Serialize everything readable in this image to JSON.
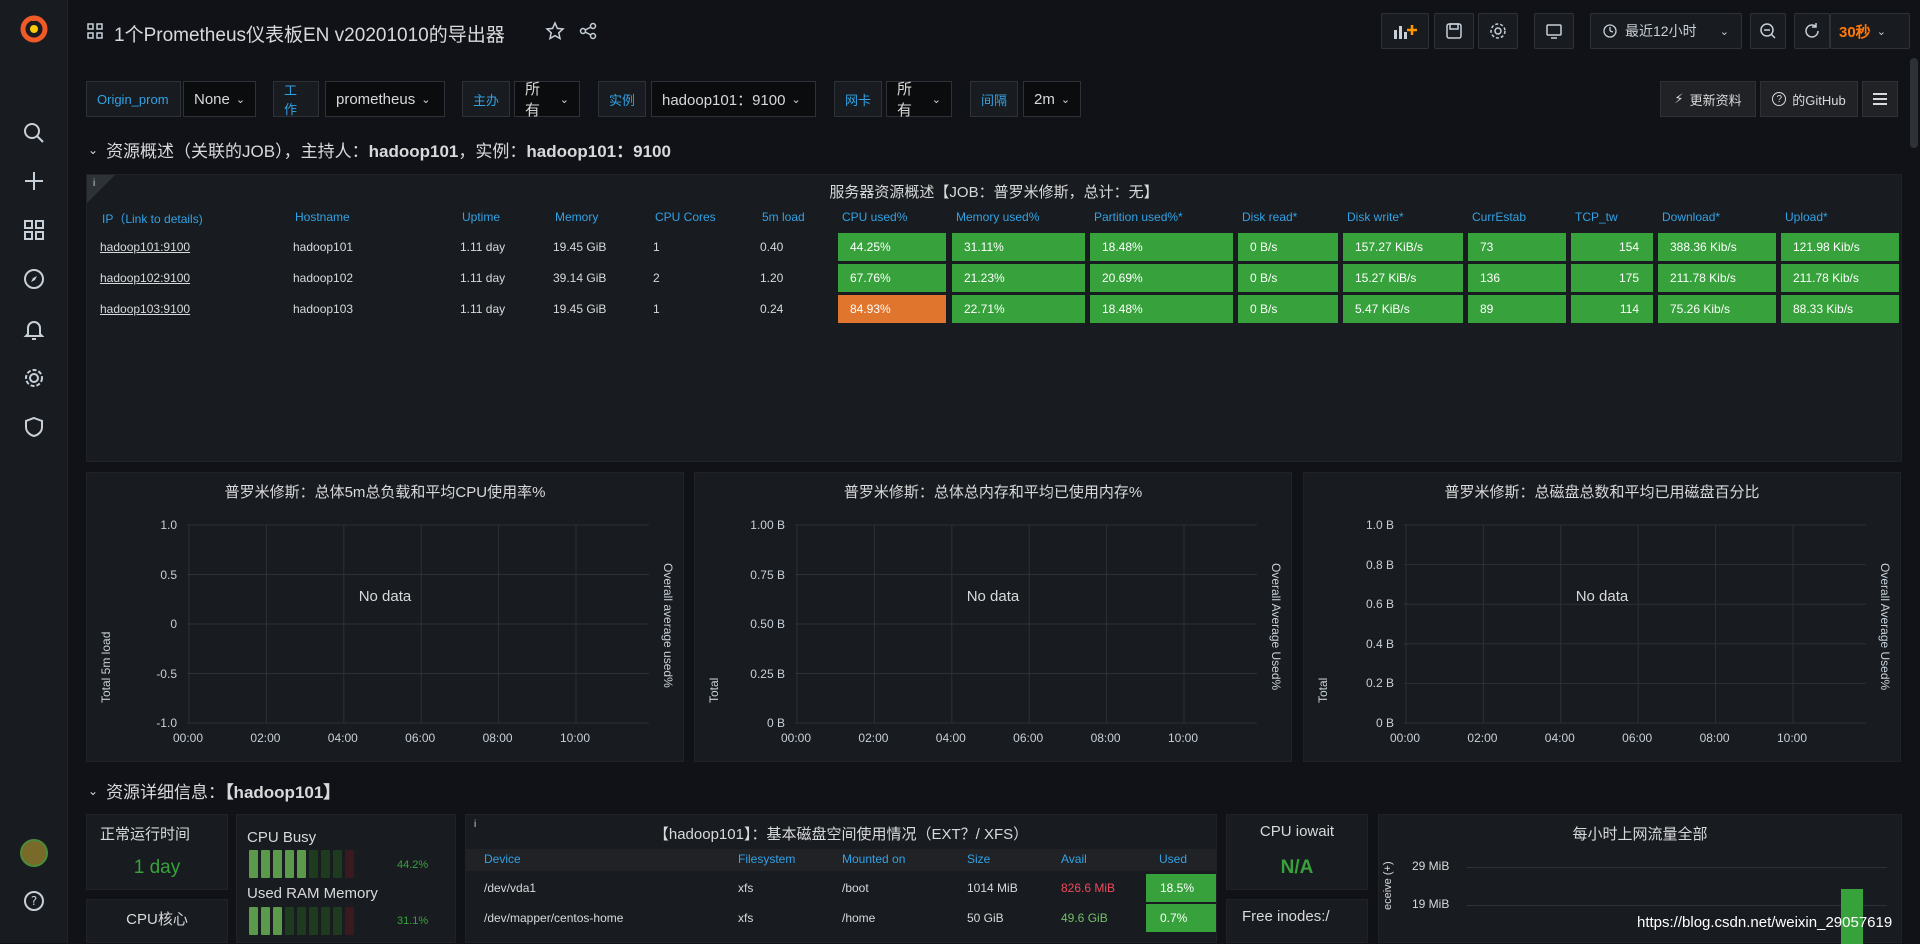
{
  "header": {
    "title": "1个Prometheus仪表板EN v20201010的导出器",
    "time_range": "最近12小时",
    "refresh": "30秒"
  },
  "variables": [
    {
      "label": "Origin_prom",
      "value": "None"
    },
    {
      "label": "工作",
      "value": "prometheus"
    },
    {
      "label": "主办",
      "value": "所有"
    },
    {
      "label": "实例",
      "value": "hadoop101：9100"
    },
    {
      "label": "网卡",
      "value": "所有"
    },
    {
      "label": "间隔",
      "value": "2m"
    }
  ],
  "links": {
    "refresh_label": "更新资料",
    "github_label": "的GitHub"
  },
  "row1": {
    "title_prefix": "资源概述（关联的JOB），主持人：",
    "host": "hadoop101",
    "instance_prefix": "，实例：",
    "instance": "hadoop101：9100"
  },
  "table_panel": {
    "title": "服务器资源概述【JOB：普罗米修斯，总计：无】",
    "headers": [
      "IP（Link to details)",
      "Hostname",
      "Uptime",
      "Memory",
      "CPU Cores",
      "5m load",
      "CPU used%",
      "Memory used%",
      "Partition used%*",
      "Disk read*",
      "Disk write*",
      "CurrEstab",
      "TCP_tw",
      "Download*",
      "Upload*"
    ],
    "rows": [
      [
        "hadoop101:9100",
        "hadoop101",
        "1.11 day",
        "19.45 GiB",
        "1",
        "0.40",
        "44.25%",
        "31.11%",
        "18.48%",
        "0 B/s",
        "157.27 KiB/s",
        "73",
        "154",
        "388.36 Kib/s",
        "121.98 Kib/s"
      ],
      [
        "hadoop102:9100",
        "hadoop102",
        "1.11 day",
        "39.14 GiB",
        "2",
        "1.20",
        "67.76%",
        "21.23%",
        "20.69%",
        "0 B/s",
        "15.27 KiB/s",
        "136",
        "175",
        "211.78 Kib/s",
        "211.78 Kib/s"
      ],
      [
        "hadoop103:9100",
        "hadoop103",
        "1.11 day",
        "19.45 GiB",
        "1",
        "0.24",
        "84.93%",
        "22.71%",
        "18.48%",
        "0 B/s",
        "5.47 KiB/s",
        "89",
        "114",
        "75.26 Kib/s",
        "88.33 Kib/s"
      ]
    ]
  },
  "charts": [
    {
      "title": "普罗米修斯：总体5m总负载和平均CPU使用率%",
      "no_data": "No data",
      "ylabel": "Total 5m load",
      "y2label": "Overall average used%",
      "yticks": [
        "1.0",
        "0.5",
        "0",
        "-0.5",
        "-1.0"
      ],
      "xticks": [
        "00:00",
        "02:00",
        "04:00",
        "06:00",
        "08:00",
        "10:00"
      ]
    },
    {
      "title": "普罗米修斯：总体总内存和平均已使用内存%",
      "no_data": "No data",
      "ylabel": "Total",
      "y2label": "Overall Average Used%",
      "yticks": [
        "1.00 B",
        "0.75 B",
        "0.50 B",
        "0.25 B",
        "0 B"
      ],
      "xticks": [
        "00:00",
        "02:00",
        "04:00",
        "06:00",
        "08:00",
        "10:00"
      ]
    },
    {
      "title": "普罗米修斯：总磁盘总数和平均已用磁盘百分比",
      "no_data": "No data",
      "ylabel": "Total",
      "y2label": "Overall Average Used%",
      "yticks": [
        "1.0 B",
        "0.8 B",
        "0.6 B",
        "0.4 B",
        "0.2 B",
        "0 B"
      ],
      "xticks": [
        "00:00",
        "02:00",
        "04:00",
        "06:00",
        "08:00",
        "10:00"
      ]
    }
  ],
  "row2": {
    "title_prefix": "资源详细信息：",
    "host": "【hadoop101】"
  },
  "uptime_panel": {
    "title": "正常运行时间",
    "value": "1 day"
  },
  "cpu_cores_panel": {
    "title": "CPU核心"
  },
  "cpu_busy": {
    "title": "CPU Busy",
    "value": "44.2%",
    "fraction": 0.442
  },
  "ram_used": {
    "title": "Used RAM Memory",
    "value": "31.1%",
    "fraction": 0.311
  },
  "disk_panel": {
    "title": "【hadoop101】：基本磁盘空间使用情况（EXT？/ XFS）",
    "headers": [
      "Device",
      "Filesystem",
      "Mounted on",
      "Size",
      "Avail",
      "Used"
    ],
    "rows": [
      [
        "/dev/vda1",
        "xfs",
        "/boot",
        "1014 MiB",
        "826.6 MiB",
        "18.5%"
      ],
      [
        "/dev/mapper/centos-home",
        "xfs",
        "/home",
        "50 GiB",
        "49.6 GiB",
        "0.7%"
      ]
    ]
  },
  "iowait_panel": {
    "title": "CPU iowait",
    "value": "N/A"
  },
  "inodes_panel": {
    "title": "Free inodes:/"
  },
  "net_panel": {
    "title": "每小时上网流量全部",
    "yticks": [
      "29 MiB",
      "19 MiB"
    ],
    "ylabel": "eceive (+)"
  },
  "watermark": "https://blog.csdn.net/weixin_29057619",
  "colors": {
    "green": "#37a23b",
    "orange": "#e0752d",
    "blue": "#33a2e5"
  }
}
